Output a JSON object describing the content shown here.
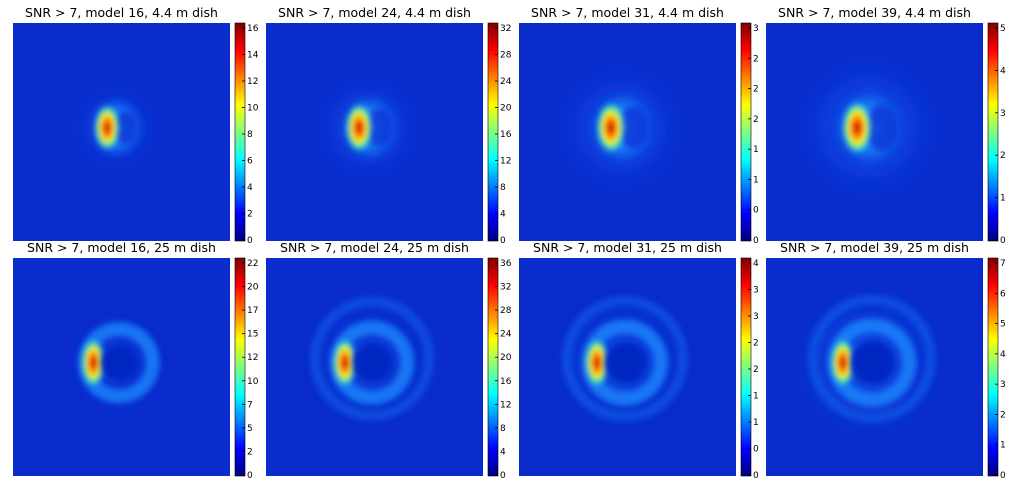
{
  "figure": {
    "colormap": "jet",
    "colormap_stops": [
      "#00007f",
      "#0000ff",
      "#007fff",
      "#00ffff",
      "#7fff7f",
      "#ffff00",
      "#ff7f00",
      "#ff0000",
      "#7f0000"
    ]
  },
  "chart_data": [
    {
      "type": "heatmap",
      "title": "SNR > 7, model 16, 4.4 m dish",
      "colorbar": {
        "ticks": [
          "0",
          "2",
          "4",
          "6",
          "8",
          "10",
          "12",
          "14",
          "16"
        ],
        "range": [
          0,
          17
        ]
      },
      "ring": {
        "has_hole": false,
        "peak_side": "left",
        "halo": 0.15
      }
    },
    {
      "type": "heatmap",
      "title": "SNR > 7, model 24, 4.4 m dish",
      "colorbar": {
        "ticks": [
          "0",
          "4",
          "8",
          "12",
          "16",
          "20",
          "24",
          "28",
          "32"
        ],
        "range": [
          0,
          33
        ]
      },
      "ring": {
        "has_hole": false,
        "peak_side": "left",
        "halo": 0.35
      }
    },
    {
      "type": "heatmap",
      "title": "SNR > 7, model 31, 4.4 m dish",
      "colorbar": {
        "ticks": [
          "0",
          "0",
          "1",
          "1",
          "2",
          "2",
          "2",
          "3"
        ],
        "range": [
          0,
          3.1
        ]
      },
      "ring": {
        "has_hole": false,
        "peak_side": "left",
        "halo": 0.55
      }
    },
    {
      "type": "heatmap",
      "title": "SNR > 7, model 39, 4.4 m dish",
      "colorbar": {
        "ticks": [
          "0",
          "1",
          "2",
          "3",
          "4",
          "5"
        ],
        "range": [
          0,
          5.4
        ]
      },
      "ring": {
        "has_hole": false,
        "peak_side": "left",
        "halo": 0.7
      }
    },
    {
      "type": "heatmap",
      "title": "SNR > 7, model 16, 25 m dish",
      "colorbar": {
        "ticks": [
          "0",
          "2",
          "5",
          "7",
          "10",
          "12",
          "15",
          "17",
          "20",
          "22"
        ],
        "range": [
          0,
          22
        ]
      },
      "ring": {
        "has_hole": true,
        "peak_side": "left",
        "halo": 0.1
      }
    },
    {
      "type": "heatmap",
      "title": "SNR > 7, model 24, 25 m dish",
      "colorbar": {
        "ticks": [
          "0",
          "4",
          "8",
          "12",
          "16",
          "20",
          "24",
          "28",
          "32",
          "36"
        ],
        "range": [
          0,
          37
        ]
      },
      "ring": {
        "has_hole": true,
        "peak_side": "left",
        "halo": 0.35
      }
    },
    {
      "type": "heatmap",
      "title": "SNR > 7, model 31, 25 m dish",
      "colorbar": {
        "ticks": [
          "0",
          "0",
          "1",
          "1",
          "2",
          "2",
          "3",
          "3",
          "4"
        ],
        "range": [
          0,
          4.3
        ]
      },
      "ring": {
        "has_hole": true,
        "peak_side": "left",
        "halo": 0.5
      }
    },
    {
      "type": "heatmap",
      "title": "SNR > 7, model 39, 25 m dish",
      "colorbar": {
        "ticks": [
          "0",
          "1",
          "2",
          "3",
          "4",
          "5",
          "6",
          "7"
        ],
        "range": [
          0,
          7.6
        ]
      },
      "ring": {
        "has_hole": true,
        "peak_side": "left",
        "halo": 0.7
      }
    }
  ]
}
